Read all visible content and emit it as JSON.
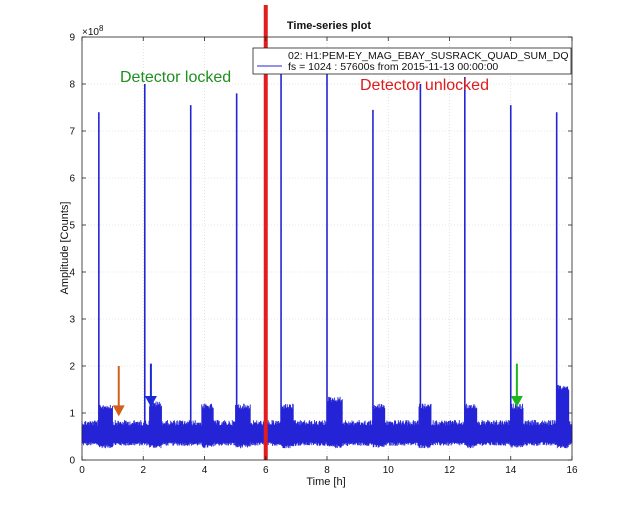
{
  "chart_data": {
    "type": "line",
    "title": "Time-series plot",
    "xlabel": "Time [h]",
    "ylabel": "Amplitude [Counts]",
    "y_scale_label": "×10",
    "y_scale_exponent": "8",
    "xlim": [
      0,
      16
    ],
    "ylim": [
      0,
      9
    ],
    "xticks": [
      0,
      2,
      4,
      6,
      8,
      10,
      12,
      14,
      16
    ],
    "yticks": [
      0,
      1,
      2,
      3,
      4,
      5,
      6,
      7,
      8,
      9
    ],
    "grid": true,
    "legend_position": "top-right",
    "legend_lines": [
      "02: H1:PEM-EY_MAG_EBAY_SUSRACK_QUAD_SUM_DQ",
      "fs = 1024 : 57600s from 2015-11-13 00:00:00"
    ],
    "series": [
      {
        "color": "#2424d6",
        "baseline_band": [
          0.3,
          0.85
        ],
        "elevated_segments": [
          {
            "x": [
              0.55,
              1.0
            ],
            "high": 1.2
          },
          {
            "x": [
              2.2,
              2.6
            ],
            "high": 1.25
          },
          {
            "x": [
              3.9,
              4.3
            ],
            "high": 1.2
          },
          {
            "x": [
              5.0,
              5.5
            ],
            "high": 1.2
          },
          {
            "x": [
              6.5,
              6.9
            ],
            "high": 1.2
          },
          {
            "x": [
              8.0,
              8.5
            ],
            "high": 1.35
          },
          {
            "x": [
              9.5,
              9.9
            ],
            "high": 1.2
          },
          {
            "x": [
              11.0,
              11.4
            ],
            "high": 1.2
          },
          {
            "x": [
              12.5,
              12.9
            ],
            "high": 1.2
          },
          {
            "x": [
              14.0,
              14.4
            ],
            "high": 1.2
          },
          {
            "x": [
              15.5,
              15.9
            ],
            "high": 1.6
          }
        ],
        "spikes": [
          {
            "x": 0.55,
            "y": 7.4
          },
          {
            "x": 2.05,
            "y": 8.0
          },
          {
            "x": 3.55,
            "y": 7.55
          },
          {
            "x": 5.05,
            "y": 7.8
          },
          {
            "x": 6.5,
            "y": 8.3
          },
          {
            "x": 8.0,
            "y": 8.3
          },
          {
            "x": 9.5,
            "y": 7.45
          },
          {
            "x": 11.05,
            "y": 8.0
          },
          {
            "x": 12.5,
            "y": 8.15
          },
          {
            "x": 14.0,
            "y": 7.55
          },
          {
            "x": 15.5,
            "y": 7.4
          }
        ]
      }
    ],
    "divider": {
      "x": 6.0,
      "color": "#e11d1d"
    },
    "annotations": [
      {
        "text": "Detector locked",
        "color": "#1f8f1f"
      },
      {
        "text": "Detector unlocked",
        "color": "#e01b1b"
      }
    ],
    "arrows": [
      {
        "x": 1.2,
        "y_from": 2.0,
        "y_to": 0.95,
        "color": "#d2601a"
      },
      {
        "x": 2.25,
        "y_from": 2.05,
        "y_to": 1.15,
        "color": "#1a2ad6"
      },
      {
        "x": 14.2,
        "y_from": 2.05,
        "y_to": 1.15,
        "color": "#1fb51f"
      }
    ]
  }
}
